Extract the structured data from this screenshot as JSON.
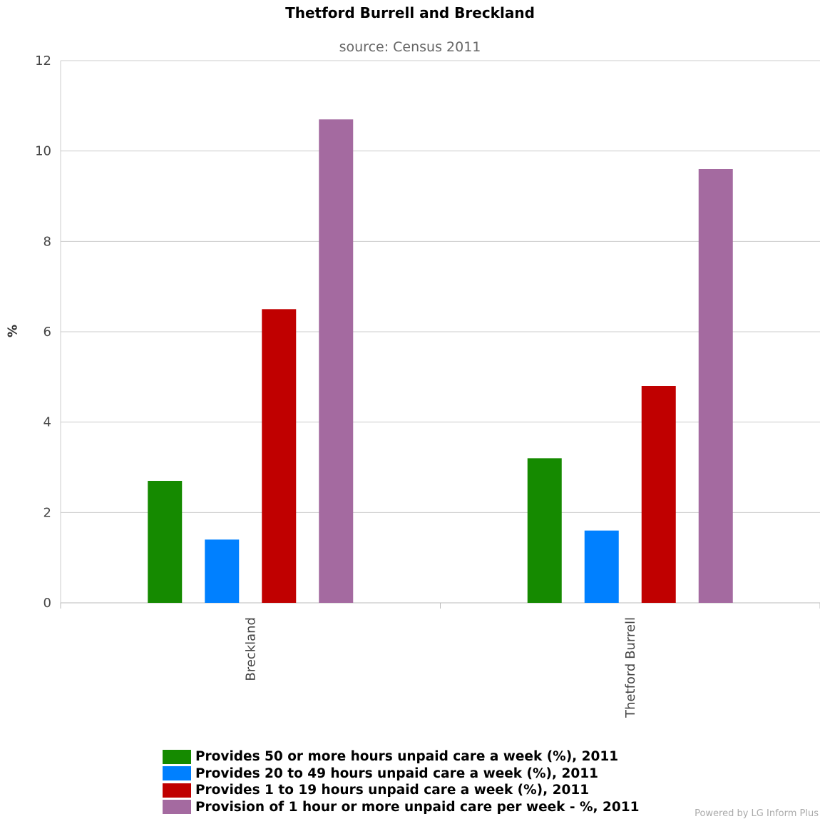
{
  "chart_data": {
    "type": "bar",
    "title": "Thetford Burrell and Breckland",
    "subtitle": "source: Census 2011",
    "ylabel": "%",
    "xlabel": "",
    "ylim": [
      0,
      12
    ],
    "yticks": [
      "0",
      "2",
      "4",
      "6",
      "8",
      "10",
      "12"
    ],
    "categories": [
      "Breckland",
      "Thetford Burrell"
    ],
    "grid": true,
    "legend_position": "bottom",
    "series": [
      {
        "name": "Provides 50 or more hours unpaid care a week (%), 2011",
        "color": "#158a00",
        "values": [
          2.7,
          3.2
        ]
      },
      {
        "name": "Provides 20 to 49 hours unpaid care a week (%), 2011",
        "color": "#0080ff",
        "values": [
          1.4,
          1.6
        ]
      },
      {
        "name": "Provides 1 to 19 hours unpaid care a week (%), 2011",
        "color": "#c00000",
        "values": [
          6.5,
          4.8
        ]
      },
      {
        "name": "Provision of 1 hour or more unpaid care per week - %, 2011",
        "color": "#a46aa0",
        "values": [
          10.7,
          9.6
        ]
      }
    ]
  },
  "footer": {
    "credit": "Powered by LG Inform Plus"
  }
}
